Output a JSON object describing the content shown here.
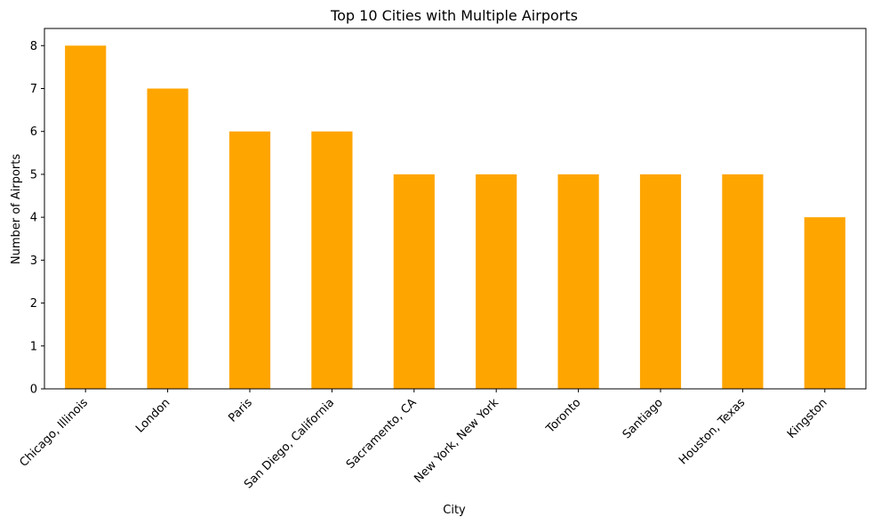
{
  "chart_data": {
    "type": "bar",
    "title": "Top 10 Cities with Multiple Airports",
    "xlabel": "City",
    "ylabel": "Number of Airports",
    "categories": [
      "Chicago, Illinois",
      "London",
      "Paris",
      "San Diego, California",
      "Sacramento, CA",
      "New York, New York",
      "Toronto",
      "Santiago",
      "Houston, Texas",
      "Kingston"
    ],
    "values": [
      8,
      7,
      6,
      6,
      5,
      5,
      5,
      5,
      5,
      4
    ],
    "ylim": [
      0,
      8.4
    ],
    "yticks": [
      0,
      1,
      2,
      3,
      4,
      5,
      6,
      7,
      8
    ],
    "bar_color": "#FFA500",
    "grid": false,
    "legend": "none"
  }
}
